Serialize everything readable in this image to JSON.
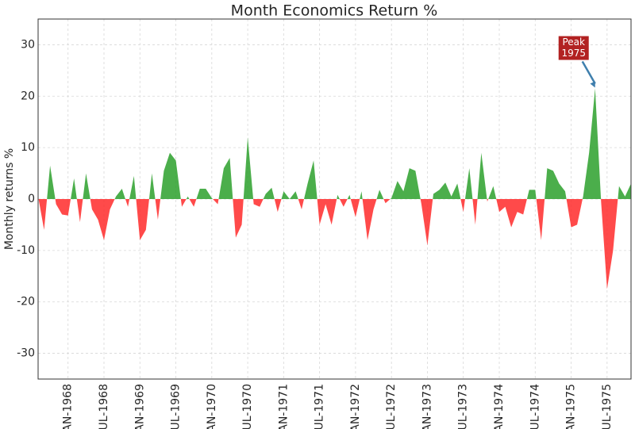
{
  "chart_data": {
    "type": "area",
    "title": "Month Economics Return %",
    "y_label": "Monthly returns %",
    "x": [
      "1967-08",
      "1967-09",
      "1967-10",
      "1967-11",
      "1967-12",
      "1968-01",
      "1968-02",
      "1968-03",
      "1968-04",
      "1968-05",
      "1968-06",
      "1968-07",
      "1968-08",
      "1968-09",
      "1968-10",
      "1968-11",
      "1968-12",
      "1969-01",
      "1969-02",
      "1969-03",
      "1969-04",
      "1969-05",
      "1969-06",
      "1969-07",
      "1969-08",
      "1969-09",
      "1969-10",
      "1969-11",
      "1969-12",
      "1970-01",
      "1970-02",
      "1970-03",
      "1970-04",
      "1970-05",
      "1970-06",
      "1970-07",
      "1970-08",
      "1970-09",
      "1970-10",
      "1970-11",
      "1970-12",
      "1971-01",
      "1971-02",
      "1971-03",
      "1971-04",
      "1971-05",
      "1971-06",
      "1971-07",
      "1971-08",
      "1971-09",
      "1971-10",
      "1971-11",
      "1971-12",
      "1972-01",
      "1972-02",
      "1972-03",
      "1972-04",
      "1972-05",
      "1972-06",
      "1972-07",
      "1972-08",
      "1972-09",
      "1972-10",
      "1972-11",
      "1972-12",
      "1973-01",
      "1973-02",
      "1973-03",
      "1973-04",
      "1973-05",
      "1973-06",
      "1973-07",
      "1973-08",
      "1973-09",
      "1973-10",
      "1973-11",
      "1973-12",
      "1974-01",
      "1974-02",
      "1974-03",
      "1974-04",
      "1974-05",
      "1974-06",
      "1974-07",
      "1974-08",
      "1974-09",
      "1974-10",
      "1974-11",
      "1974-12",
      "1975-01",
      "1975-02",
      "1975-03",
      "1975-04",
      "1975-05",
      "1975-06",
      "1975-07",
      "1975-08",
      "1975-09",
      "1975-10",
      "1975-11"
    ],
    "values": [
      0.5,
      -6,
      6.5,
      -1,
      -3,
      -3.2,
      4,
      -4.5,
      5,
      -2,
      -4,
      -8,
      -2,
      0.5,
      2,
      -1.5,
      4.5,
      -8,
      -6,
      5,
      -4,
      5.5,
      9,
      7.5,
      -1.5,
      0.5,
      -1.5,
      2,
      2,
      0.2,
      -1,
      6,
      8,
      -7.5,
      -5,
      12,
      -1,
      -1.5,
      1,
      2.2,
      -2.5,
      1.5,
      0,
      1.5,
      -2,
      3,
      7.5,
      -5,
      -1,
      -5,
      0.8,
      -1.5,
      0.8,
      -3.5,
      1.5,
      -8,
      -2,
      1.8,
      -0.8,
      0.2,
      3.5,
      1.5,
      6,
      5.5,
      -1,
      -9,
      1,
      1.8,
      3.2,
      0.5,
      3,
      -2.5,
      6,
      -5,
      9,
      -0.5,
      2.5,
      -2.5,
      -1.5,
      -5.5,
      -2.5,
      -3,
      1.8,
      1.8,
      -8,
      6,
      5.5,
      3,
      1.5,
      -5.5,
      -5,
      0.5,
      9,
      21.5,
      -0.5,
      -17.5,
      -10,
      2.5,
      0.5,
      3
    ],
    "positive_color": "#2ca02c",
    "negative_color": "#ff2a2a",
    "xlim": [
      "1967-08",
      "1975-11"
    ],
    "xticks": [
      {
        "value": "1968-01",
        "label": "JAN-1968"
      },
      {
        "value": "1968-07",
        "label": "JUL-1968"
      },
      {
        "value": "1969-01",
        "label": "JAN-1969"
      },
      {
        "value": "1969-07",
        "label": "JUL-1969"
      },
      {
        "value": "1970-01",
        "label": "JAN-1970"
      },
      {
        "value": "1970-07",
        "label": "JUL-1970"
      },
      {
        "value": "1971-01",
        "label": "JAN-1971"
      },
      {
        "value": "1971-07",
        "label": "JUL-1971"
      },
      {
        "value": "1972-01",
        "label": "JAN-1972"
      },
      {
        "value": "1972-07",
        "label": "JUL-1972"
      },
      {
        "value": "1973-01",
        "label": "JAN-1973"
      },
      {
        "value": "1973-07",
        "label": "JUL-1973"
      },
      {
        "value": "1974-01",
        "label": "JAN-1974"
      },
      {
        "value": "1974-07",
        "label": "JUL-1974"
      },
      {
        "value": "1975-01",
        "label": "JAN-1975"
      },
      {
        "value": "1975-07",
        "label": "JUL-1975"
      }
    ],
    "ylim": [
      -35,
      35
    ],
    "yticks": [
      -30,
      -20,
      -10,
      0,
      10,
      20,
      30
    ],
    "grid": true,
    "annotation": {
      "lines": [
        "Peak",
        "1975"
      ],
      "color": "#b22222"
    }
  }
}
